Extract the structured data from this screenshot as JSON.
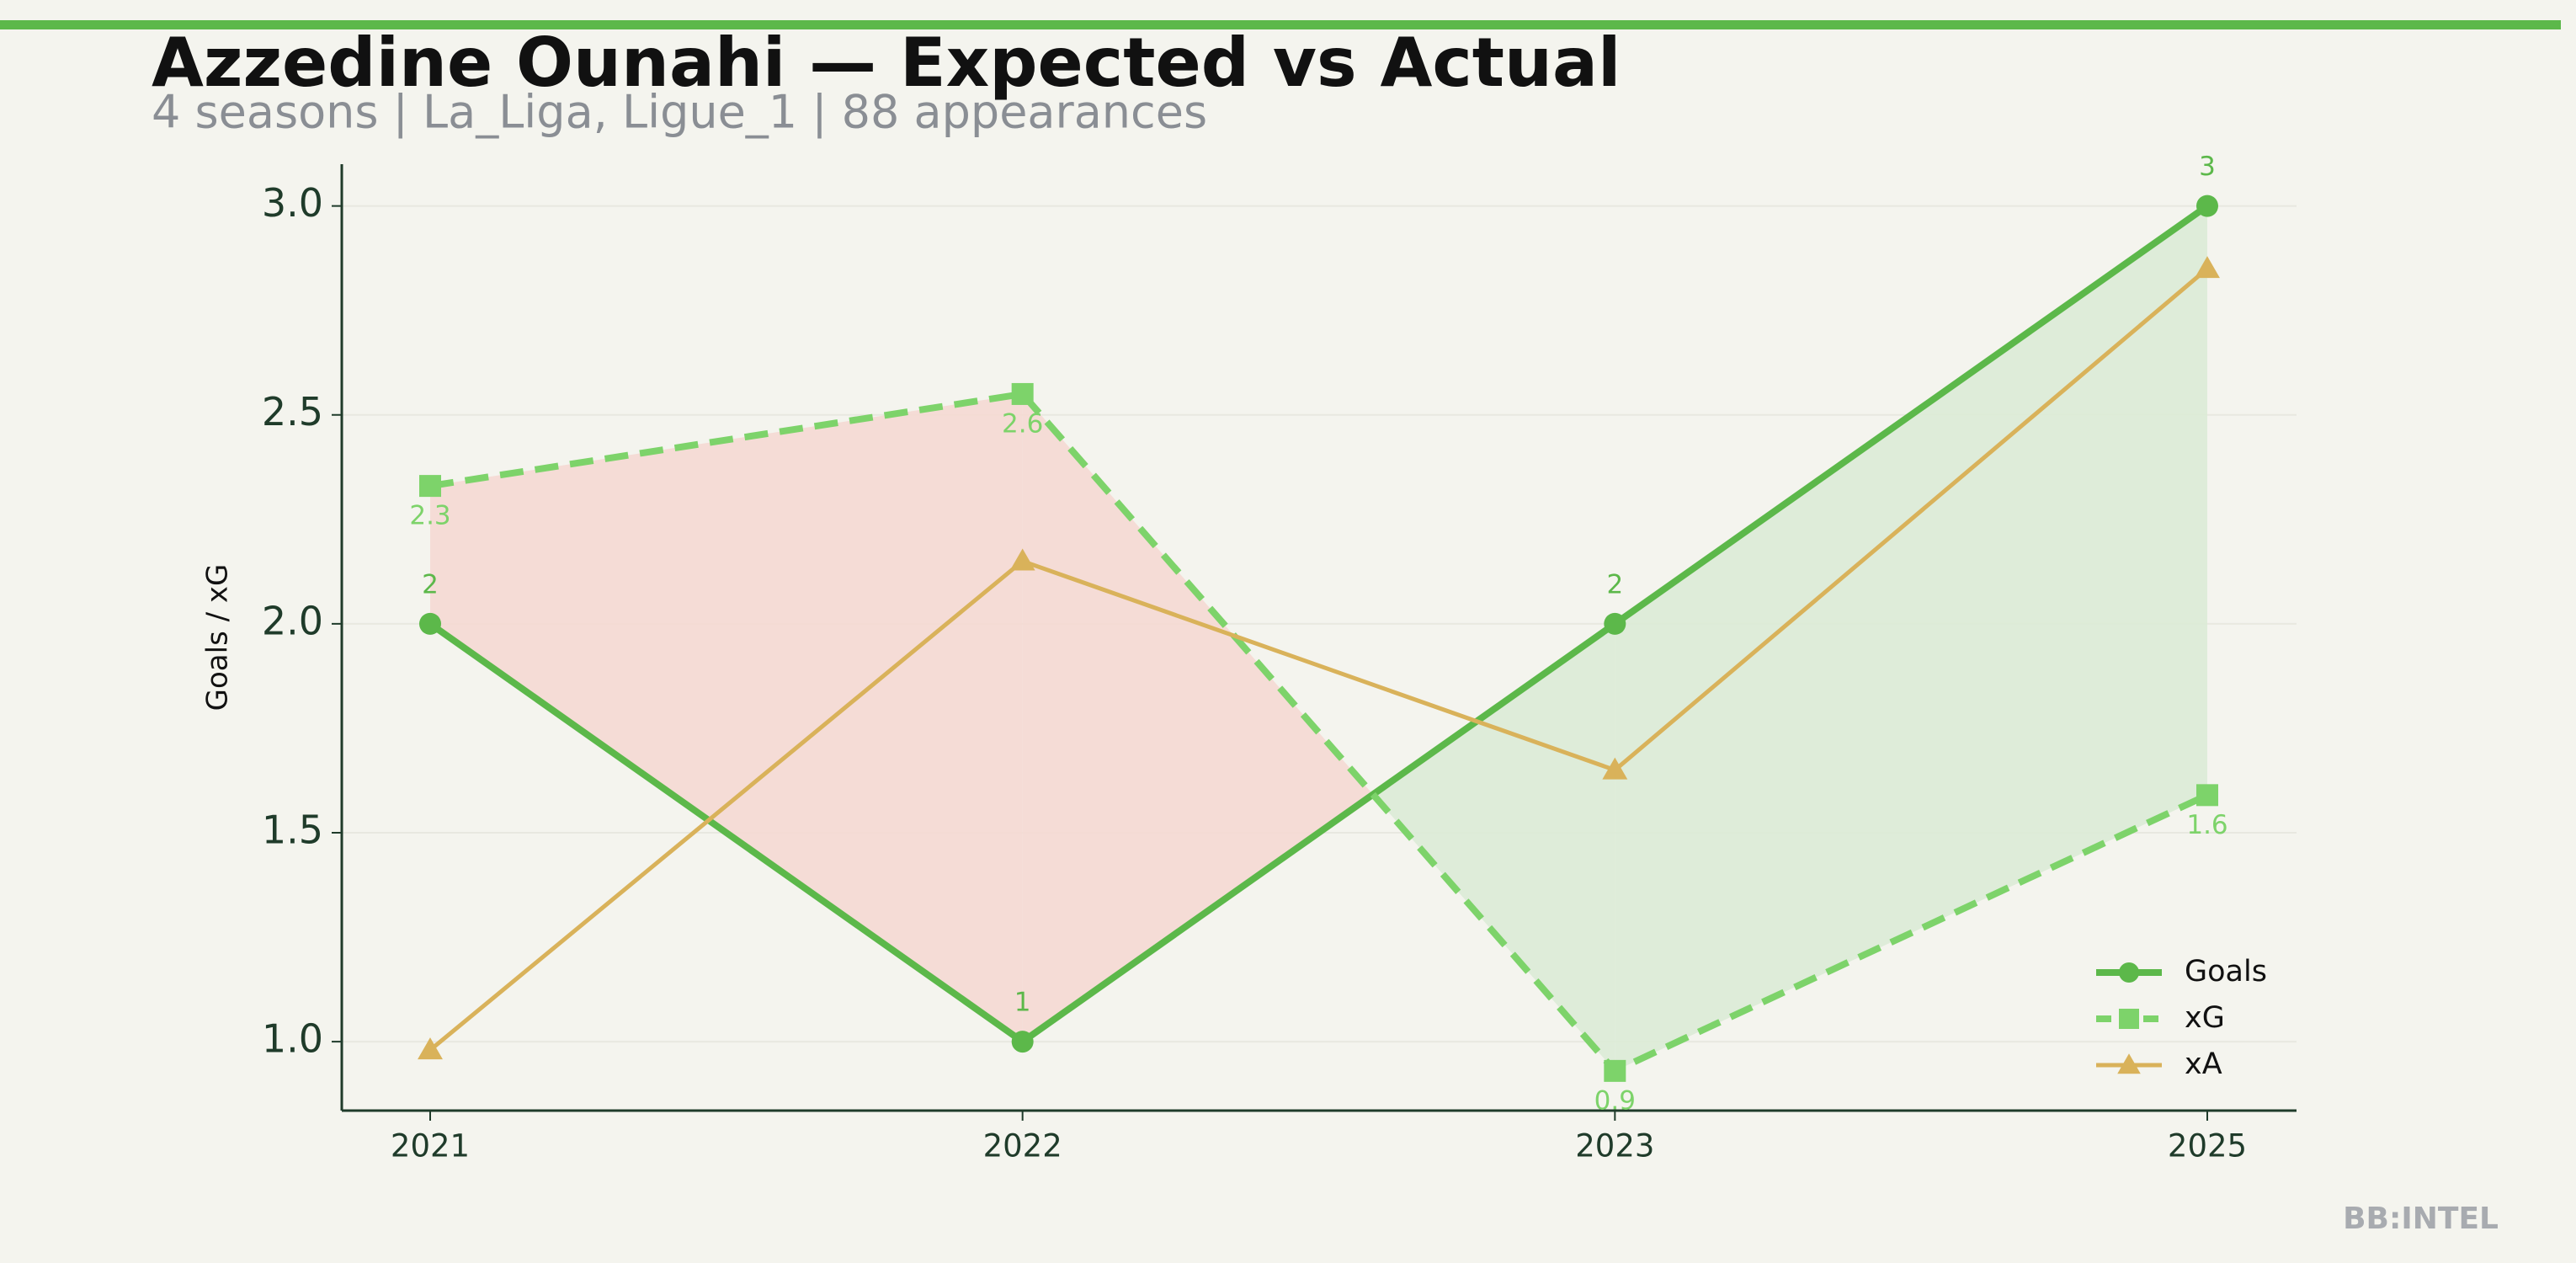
{
  "chart_data": {
    "type": "line",
    "title": "Azzedine Ounahi — Expected vs Actual",
    "subtitle": "4 seasons | La_Liga, Ligue_1 | 88 appearances",
    "ylabel": "Goals / xG",
    "watermark": "BB:INTEL",
    "categories": [
      "2021",
      "2022",
      "2023",
      "2025"
    ],
    "series": [
      {
        "name": "Goals",
        "color": "#5cb84a",
        "linestyle": "solid",
        "marker": "circle",
        "values": [
          2,
          1,
          2,
          3
        ],
        "label_side": "above"
      },
      {
        "name": "xG",
        "color": "#7dd36a",
        "linestyle": "dashed",
        "marker": "square",
        "values": [
          2.33,
          2.55,
          0.93,
          1.59
        ],
        "value_labels": [
          "2.3",
          "2.6",
          "0.9",
          "1.6"
        ],
        "label_side": "below"
      },
      {
        "name": "xA",
        "color": "#d9b25a",
        "linestyle": "solid",
        "marker": "triangle",
        "values": [
          0.98,
          2.15,
          1.65,
          2.85
        ]
      }
    ],
    "fill_between": {
      "over_color": "#dcebd6",
      "under_color": "#f5d9d3"
    },
    "ylim": [
      0.835,
      3.1
    ],
    "yticks": [
      {
        "value": 1,
        "label": "1.0"
      },
      1.5,
      {
        "value": 2,
        "label": "2.0"
      },
      2.5,
      {
        "value": 3,
        "label": "3.0"
      }
    ],
    "grid": true,
    "legend": "lower right"
  }
}
